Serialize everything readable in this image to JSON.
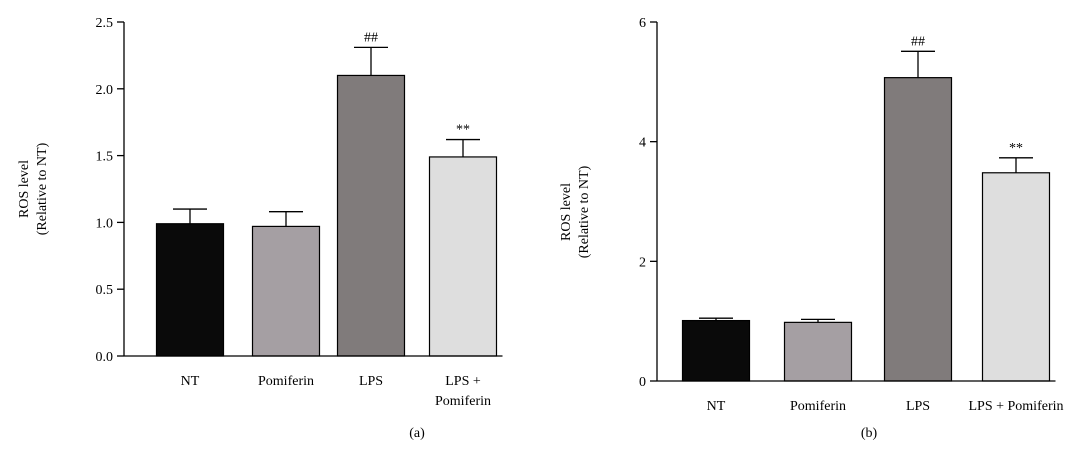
{
  "chart_data": [
    {
      "type": "bar",
      "panel_label": "(a)",
      "ylabel_line1": "ROS level",
      "ylabel_line2": "(Relative to NT)",
      "ylim": [
        0,
        2.5
      ],
      "yticks": [
        0.0,
        0.5,
        1.0,
        1.5,
        2.0,
        2.5
      ],
      "ytick_labels": [
        "0.0",
        "0.5",
        "1.0",
        "1.5",
        "2.0",
        "2.5"
      ],
      "categories": [
        [
          "NT"
        ],
        [
          "Pomiferin"
        ],
        [
          "LPS"
        ],
        [
          "LPS +",
          "Pomiferin"
        ]
      ],
      "values": [
        0.99,
        0.97,
        2.1,
        1.49
      ],
      "errors": [
        0.11,
        0.11,
        0.21,
        0.13
      ],
      "annotations": [
        "",
        "",
        "##",
        "**"
      ],
      "colors": [
        "#0a0a0a",
        "#a59fa3",
        "#807b7b",
        "#dedede"
      ]
    },
    {
      "type": "bar",
      "panel_label": "(b)",
      "ylabel_line1": "ROS level",
      "ylabel_line2": "(Relative to NT)",
      "ylim": [
        0,
        6
      ],
      "yticks": [
        0,
        2,
        4,
        6
      ],
      "ytick_labels": [
        "0",
        "2",
        "4",
        "6"
      ],
      "categories": [
        [
          "NT"
        ],
        [
          "Pomiferin"
        ],
        [
          "LPS"
        ],
        [
          "LPS + Pomiferin"
        ]
      ],
      "values": [
        1.01,
        0.98,
        5.07,
        3.48
      ],
      "errors": [
        0.04,
        0.05,
        0.44,
        0.25
      ],
      "annotations": [
        "",
        "",
        "##",
        "**"
      ],
      "colors": [
        "#0a0a0a",
        "#a59fa3",
        "#807b7b",
        "#dedede"
      ]
    }
  ]
}
